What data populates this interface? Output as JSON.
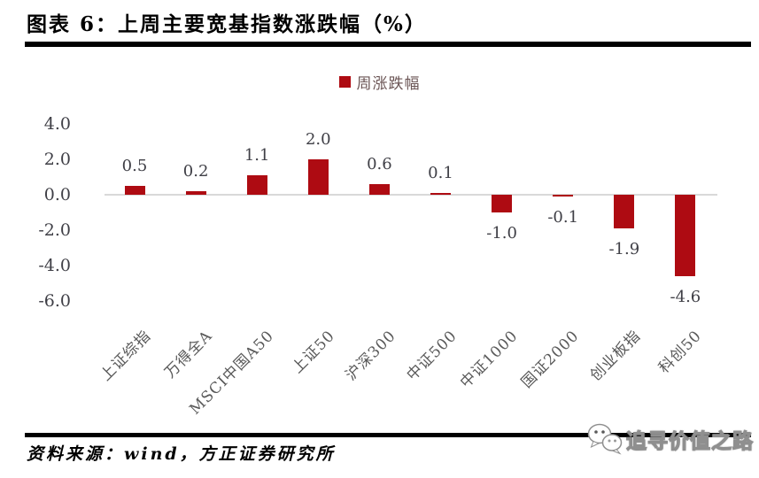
{
  "figure": {
    "title": "图表 6：上周主要宽基指数涨跌幅（%）",
    "source_note": "资料来源：wind，方正证券研究所",
    "watermark": {
      "text": "追寻价值之路",
      "icon": "wechat-chat-bubbles-icon"
    }
  },
  "legend": {
    "series_label": "周涨跌幅",
    "marker_color": "#AE0B12"
  },
  "chart_data": {
    "type": "bar",
    "title": "上周主要宽基指数涨跌幅（%）",
    "categories": [
      "上证综指",
      "万得全A",
      "MSCI中国A50",
      "上证50",
      "沪深300",
      "中证500",
      "中证1000",
      "国证2000",
      "创业板指",
      "科创50"
    ],
    "series": [
      {
        "name": "周涨跌幅",
        "values": [
          0.5,
          0.2,
          1.1,
          2.0,
          0.6,
          0.1,
          -1.0,
          -0.1,
          -1.9,
          -4.6
        ]
      }
    ],
    "value_labels": [
      "0.5",
      "0.2",
      "1.1",
      "2.0",
      "0.6",
      "0.1",
      "-1.0",
      "-0.1",
      "-1.9",
      "-4.6"
    ],
    "ytick_labels": [
      "4.0",
      "2.0",
      "0.0",
      "-2.0",
      "-4.0",
      "-6.0"
    ],
    "yticks": [
      4.0,
      2.0,
      0.0,
      -2.0,
      -4.0,
      -6.0
    ],
    "ylim": [
      -6.0,
      4.0
    ],
    "xlabel": "",
    "ylabel": "",
    "grid": false,
    "legend_position": "top-center",
    "bar_color": "#AE0B12",
    "zero_line_color": "#D9D9D9"
  }
}
